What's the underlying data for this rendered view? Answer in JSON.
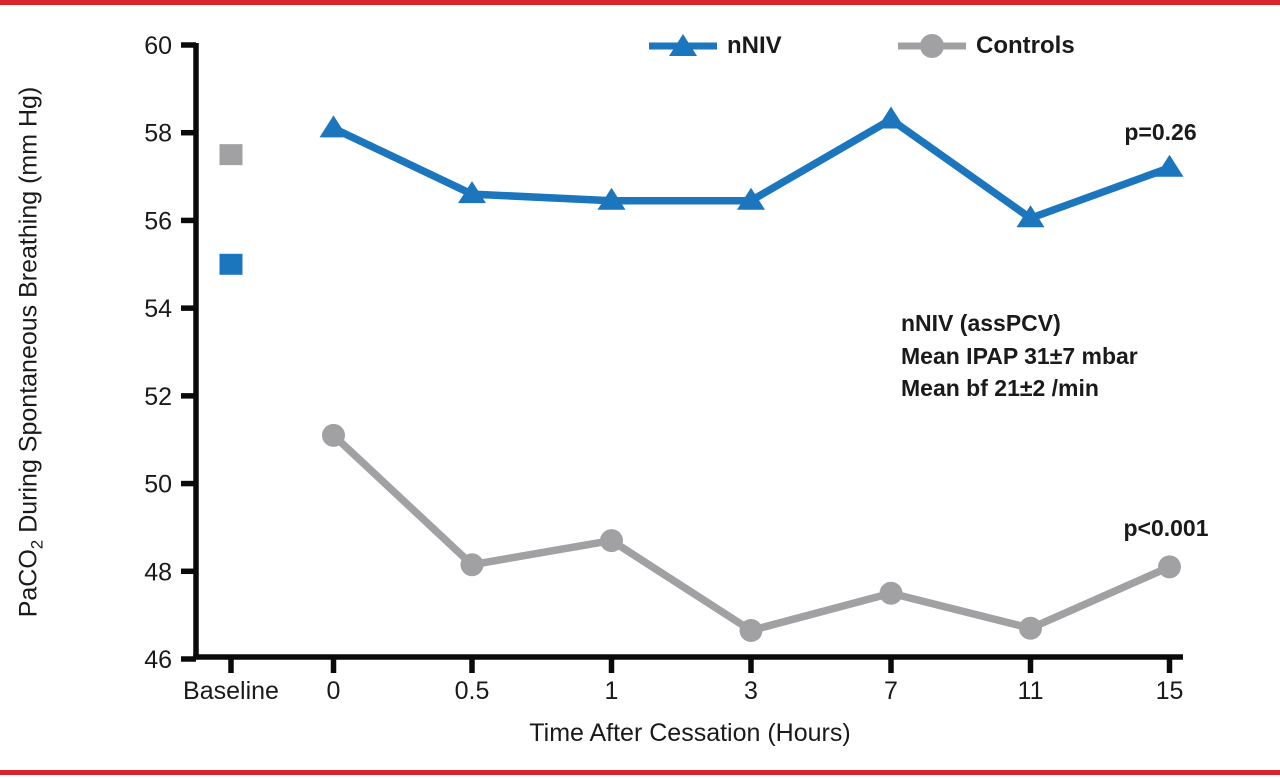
{
  "frame": {
    "background": "#FFFFFF",
    "border_color": "#D8252D"
  },
  "legend": [
    {
      "label": "nNIV",
      "color": "#1C76BD",
      "marker": "triangle"
    },
    {
      "label": "Controls",
      "color": "#A1A1A4",
      "marker": "circle"
    }
  ],
  "annotations": {
    "p_nniv": "p=0.26",
    "p_controls": "p<0.001",
    "info_lines": [
      "nNIV (assPCV)",
      "Mean IPAP 31±7 mbar",
      "Mean bf 21±2 /min"
    ]
  },
  "axes": {
    "xlabel": "Time After Cessation (Hours)",
    "ylabel_prefix": "PaCO",
    "ylabel_sub": "2",
    "ylabel_suffix": " During Spontaneous Breathing (mm Hg)"
  },
  "chart_data": {
    "type": "line",
    "title": "",
    "xlabel": "Time After Cessation (Hours)",
    "ylabel": "PaCO2 During Spontaneous Breathing (mm Hg)",
    "x_categories": [
      "Baseline",
      "0",
      "0.5",
      "1",
      "3",
      "7",
      "11",
      "15"
    ],
    "y_ticks": [
      60,
      58,
      56,
      54,
      52,
      50,
      48,
      46
    ],
    "ylim": [
      46,
      60
    ],
    "grid": false,
    "legend_position": "top",
    "series": [
      {
        "name": "nNIV",
        "color": "#1C76BD",
        "marker": "triangle",
        "x": [
          "0",
          "0.5",
          "1",
          "3",
          "7",
          "11",
          "15"
        ],
        "values": [
          58.1,
          56.6,
          56.45,
          56.45,
          58.3,
          56.05,
          57.2
        ],
        "p_label": "p=0.26"
      },
      {
        "name": "Controls",
        "color": "#A1A1A4",
        "marker": "circle",
        "x": [
          "0",
          "0.5",
          "1",
          "3",
          "7",
          "11",
          "15"
        ],
        "values": [
          51.1,
          48.15,
          48.7,
          46.65,
          47.5,
          46.7,
          48.1
        ],
        "p_label": "p<0.001"
      }
    ],
    "baseline_points": [
      {
        "series": "Controls",
        "x": "Baseline",
        "value": 57.5,
        "marker": "square",
        "color": "#A1A1A4"
      },
      {
        "series": "nNIV",
        "x": "Baseline",
        "value": 55.0,
        "marker": "square",
        "color": "#1C76BD"
      }
    ]
  }
}
